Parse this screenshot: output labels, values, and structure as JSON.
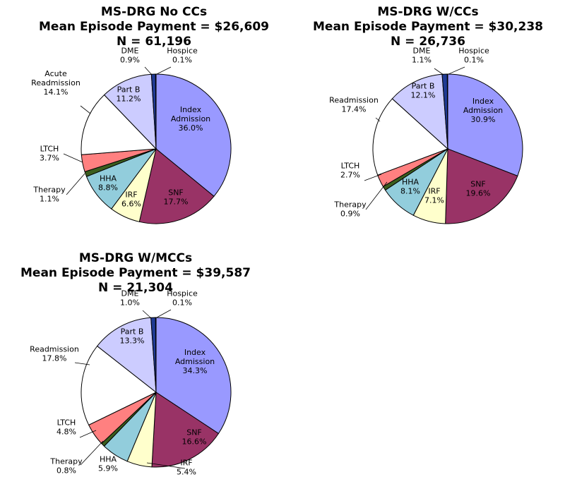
{
  "chart_data": [
    {
      "type": "pie",
      "title_lines": [
        "MS-DRG No CCs",
        "Mean Episode Payment = $26,609",
        "N = 61,196"
      ],
      "slices": [
        {
          "name": "Index Admission",
          "label_lines": [
            "Index",
            "Admission",
            "36.0%"
          ],
          "value": 36.0,
          "color": "#9999ff"
        },
        {
          "name": "SNF",
          "label_lines": [
            "SNF",
            "17.7%"
          ],
          "value": 17.7,
          "color": "#993366"
        },
        {
          "name": "IRF",
          "label_lines": [
            "IRF",
            "6.6%"
          ],
          "value": 6.6,
          "color": "#ffffcc"
        },
        {
          "name": "HHA",
          "label_lines": [
            "HHA",
            "8.8%"
          ],
          "value": 8.8,
          "color": "#92cddc"
        },
        {
          "name": "Therapy",
          "label_lines": [
            "Therapy",
            "1.1%"
          ],
          "value": 1.1,
          "color": "#3b5e1e"
        },
        {
          "name": "LTCH",
          "label_lines": [
            "LTCH",
            "3.7%"
          ],
          "value": 3.7,
          "color": "#ff8080"
        },
        {
          "name": "Acute Readmission",
          "label_lines": [
            "Acute",
            "Readmission",
            "14.1%"
          ],
          "value": 14.1,
          "color": "#ffffff"
        },
        {
          "name": "Part B",
          "label_lines": [
            "Part B",
            "11.2%"
          ],
          "value": 11.2,
          "color": "#ccccff"
        },
        {
          "name": "DME",
          "label_lines": [
            "DME",
            "0.9%"
          ],
          "value": 0.9,
          "color": "#1f3a93"
        },
        {
          "name": "Hospice",
          "label_lines": [
            "Hospice",
            "0.1%"
          ],
          "value": 0.1,
          "color": "#000080"
        }
      ]
    },
    {
      "type": "pie",
      "title_lines": [
        "MS-DRG W/CCs",
        "Mean Episode Payment = $30,238",
        "N = 26,736"
      ],
      "slices": [
        {
          "name": "Index Admission",
          "label_lines": [
            "Index",
            "Admission",
            "30.9%"
          ],
          "value": 30.9,
          "color": "#9999ff"
        },
        {
          "name": "SNF",
          "label_lines": [
            "SNF",
            "19.6%"
          ],
          "value": 19.6,
          "color": "#993366"
        },
        {
          "name": "IRF",
          "label_lines": [
            "IRF",
            "7.1%"
          ],
          "value": 7.1,
          "color": "#ffffcc"
        },
        {
          "name": "HHA",
          "label_lines": [
            "HHA",
            "8.1%"
          ],
          "value": 8.1,
          "color": "#92cddc"
        },
        {
          "name": "Therapy",
          "label_lines": [
            "Therapy",
            "0.9%"
          ],
          "value": 0.9,
          "color": "#3b5e1e"
        },
        {
          "name": "LTCH",
          "label_lines": [
            "LTCH",
            "2.7%"
          ],
          "value": 2.7,
          "color": "#ff8080"
        },
        {
          "name": "Readmission",
          "label_lines": [
            "Readmission",
            "17.4%"
          ],
          "value": 17.4,
          "color": "#ffffff"
        },
        {
          "name": "Part B",
          "label_lines": [
            "Part B",
            "12.1%"
          ],
          "value": 12.1,
          "color": "#ccccff"
        },
        {
          "name": "DME",
          "label_lines": [
            "DME",
            "1.1%"
          ],
          "value": 1.1,
          "color": "#1f3a93"
        },
        {
          "name": "Hospice",
          "label_lines": [
            "Hospice",
            "0.1%"
          ],
          "value": 0.1,
          "color": "#000080"
        }
      ]
    },
    {
      "type": "pie",
      "title_lines": [
        "MS-DRG W/MCCs",
        "Mean Episode Payment = $39,587",
        "N = 21,304"
      ],
      "slices": [
        {
          "name": "Index Admission",
          "label_lines": [
            "Index",
            "Admission",
            "34.3%"
          ],
          "value": 34.3,
          "color": "#9999ff"
        },
        {
          "name": "SNF",
          "label_lines": [
            "SNF",
            "16.6%"
          ],
          "value": 16.6,
          "color": "#993366"
        },
        {
          "name": "IRF",
          "label_lines": [
            "IRF",
            "5.4%"
          ],
          "value": 5.4,
          "color": "#ffffcc"
        },
        {
          "name": "HHA",
          "label_lines": [
            "HHA",
            "5.9%"
          ],
          "value": 5.9,
          "color": "#92cddc"
        },
        {
          "name": "Therapy",
          "label_lines": [
            "Therapy",
            "0.8%"
          ],
          "value": 0.8,
          "color": "#3b5e1e"
        },
        {
          "name": "LTCH",
          "label_lines": [
            "LTCH",
            "4.8%"
          ],
          "value": 4.8,
          "color": "#ff8080"
        },
        {
          "name": "Readmission",
          "label_lines": [
            "Readmission",
            "17.8%"
          ],
          "value": 17.8,
          "color": "#ffffff"
        },
        {
          "name": "Part B",
          "label_lines": [
            "Part B",
            "13.3%"
          ],
          "value": 13.3,
          "color": "#ccccff"
        },
        {
          "name": "DME",
          "label_lines": [
            "DME",
            "1.0%"
          ],
          "value": 1.0,
          "color": "#1f3a93"
        },
        {
          "name": "Hospice",
          "label_lines": [
            "Hospice",
            "0.1%"
          ],
          "value": 0.1,
          "color": "#000080"
        }
      ]
    }
  ]
}
